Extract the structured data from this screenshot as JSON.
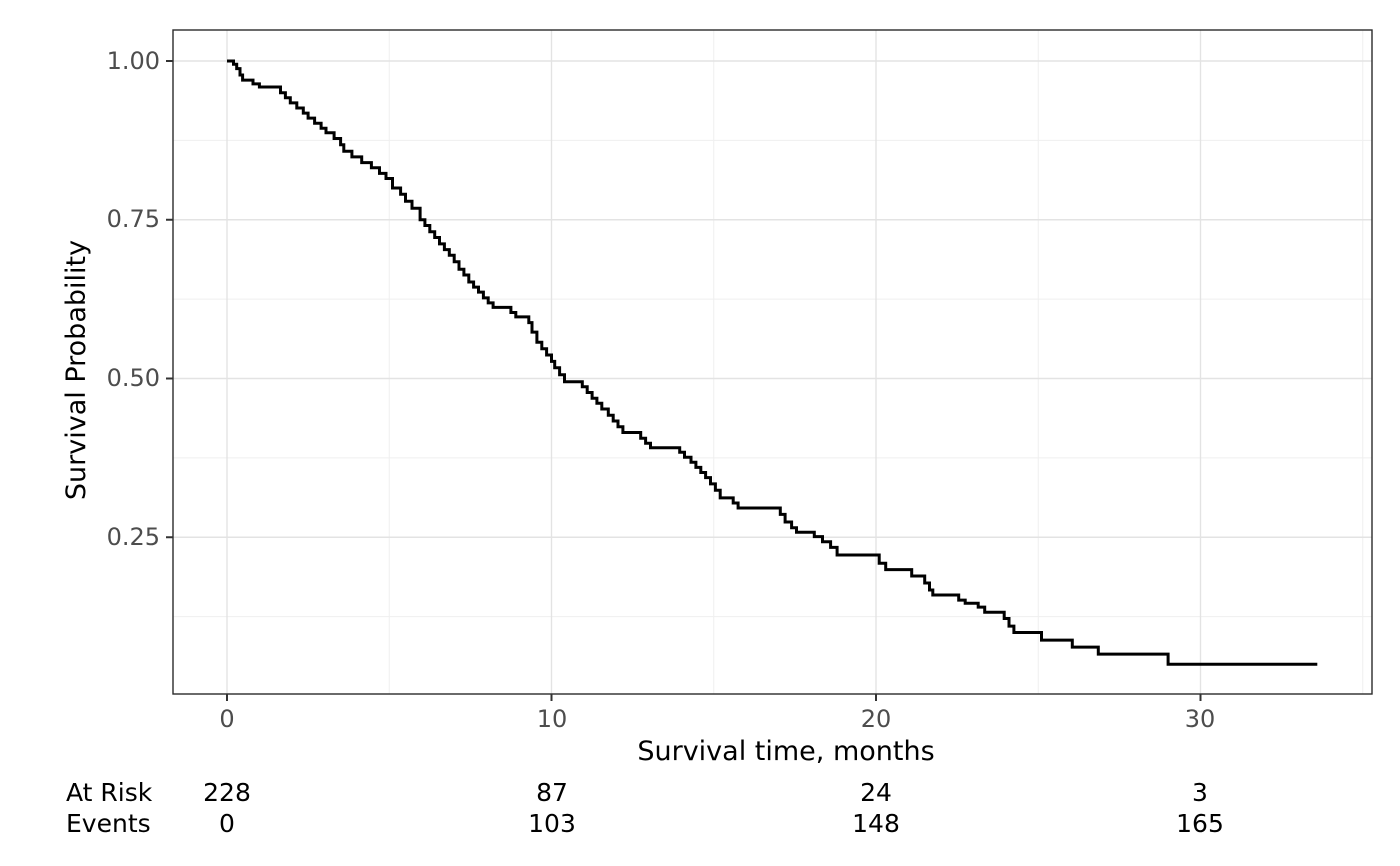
{
  "figure": {
    "colors": {
      "background": "#ffffff",
      "curve": "#000000",
      "grid_major": "#e3e3e3",
      "grid_minor": "#efefef",
      "panel_border": "#2b2b2b",
      "tick_mark": "#333333",
      "tick_label": "#4d4d4d",
      "title_text": "#000000"
    },
    "y_axis": {
      "title": "Survival Probability",
      "tick_labels": [
        "1.00",
        "0.75",
        "0.50",
        "0.25"
      ]
    },
    "x_axis": {
      "title": "Survival time, months",
      "tick_labels": [
        "0",
        "10",
        "20",
        "30"
      ]
    }
  },
  "risk_table": {
    "at_risk_label": "At Risk",
    "events_label": "Events",
    "times": [
      0,
      10,
      20,
      30
    ],
    "at_risk_values": [
      "228",
      "87",
      "24",
      "3"
    ],
    "events_values": [
      "0",
      "103",
      "148",
      "165"
    ]
  },
  "chart_data": {
    "type": "line",
    "subtype": "kaplan-meier-step-curve",
    "title": "",
    "xlabel": "Survival time, months",
    "ylabel": "Survival Probability",
    "xlim": [
      -1.7,
      35.3
    ],
    "ylim": [
      0.0,
      1.05
    ],
    "x_ticks": [
      0,
      10,
      20,
      30
    ],
    "x_minor_ticks": [
      5,
      15,
      25,
      35
    ],
    "y_ticks": [
      0.25,
      0.5,
      0.75,
      1.0
    ],
    "y_minor_ticks": [
      0.125,
      0.375,
      0.625,
      0.875
    ],
    "grid": "major and minor, light grey on white",
    "legend": "none",
    "n_subjects": 228,
    "total_events": 165,
    "end_time": 33.6,
    "at_risk": {
      "times": [
        0,
        10,
        20,
        30
      ],
      "n_risk": [
        228,
        87,
        24,
        3
      ],
      "cum_events": [
        0,
        103,
        148,
        165
      ]
    },
    "steps": [
      [
        0,
        1.0
      ],
      [
        0.2,
        0.995
      ],
      [
        0.3,
        0.988
      ],
      [
        0.4,
        0.978
      ],
      [
        0.48,
        0.97
      ],
      [
        0.8,
        0.964
      ],
      [
        1.0,
        0.959
      ],
      [
        1.65,
        0.95
      ],
      [
        1.8,
        0.942
      ],
      [
        1.95,
        0.934
      ],
      [
        2.15,
        0.926
      ],
      [
        2.35,
        0.918
      ],
      [
        2.5,
        0.91
      ],
      [
        2.7,
        0.902
      ],
      [
        2.9,
        0.894
      ],
      [
        3.05,
        0.887
      ],
      [
        3.3,
        0.878
      ],
      [
        3.5,
        0.868
      ],
      [
        3.6,
        0.858
      ],
      [
        3.85,
        0.849
      ],
      [
        4.15,
        0.84
      ],
      [
        4.45,
        0.832
      ],
      [
        4.7,
        0.823
      ],
      [
        4.9,
        0.815
      ],
      [
        5.1,
        0.8
      ],
      [
        5.35,
        0.79
      ],
      [
        5.5,
        0.779
      ],
      [
        5.7,
        0.768
      ],
      [
        5.95,
        0.75
      ],
      [
        6.1,
        0.741
      ],
      [
        6.25,
        0.731
      ],
      [
        6.4,
        0.722
      ],
      [
        6.55,
        0.712
      ],
      [
        6.7,
        0.703
      ],
      [
        6.85,
        0.694
      ],
      [
        7.0,
        0.684
      ],
      [
        7.15,
        0.672
      ],
      [
        7.3,
        0.663
      ],
      [
        7.45,
        0.652
      ],
      [
        7.6,
        0.644
      ],
      [
        7.75,
        0.636
      ],
      [
        7.9,
        0.627
      ],
      [
        8.05,
        0.619
      ],
      [
        8.2,
        0.612
      ],
      [
        8.75,
        0.604
      ],
      [
        8.9,
        0.597
      ],
      [
        9.3,
        0.588
      ],
      [
        9.4,
        0.573
      ],
      [
        9.55,
        0.557
      ],
      [
        9.7,
        0.547
      ],
      [
        9.85,
        0.537
      ],
      [
        10.0,
        0.527
      ],
      [
        10.1,
        0.517
      ],
      [
        10.25,
        0.506
      ],
      [
        10.4,
        0.495
      ],
      [
        10.95,
        0.487
      ],
      [
        11.1,
        0.478
      ],
      [
        11.25,
        0.469
      ],
      [
        11.4,
        0.461
      ],
      [
        11.55,
        0.452
      ],
      [
        11.75,
        0.442
      ],
      [
        11.9,
        0.433
      ],
      [
        12.05,
        0.424
      ],
      [
        12.2,
        0.415
      ],
      [
        12.75,
        0.406
      ],
      [
        12.9,
        0.398
      ],
      [
        13.05,
        0.391
      ],
      [
        13.95,
        0.384
      ],
      [
        14.1,
        0.376
      ],
      [
        14.3,
        0.368
      ],
      [
        14.45,
        0.36
      ],
      [
        14.6,
        0.352
      ],
      [
        14.75,
        0.344
      ],
      [
        14.9,
        0.334
      ],
      [
        15.05,
        0.324
      ],
      [
        15.2,
        0.312
      ],
      [
        15.6,
        0.304
      ],
      [
        15.75,
        0.296
      ],
      [
        17.05,
        0.286
      ],
      [
        17.2,
        0.274
      ],
      [
        17.4,
        0.265
      ],
      [
        17.55,
        0.258
      ],
      [
        18.1,
        0.251
      ],
      [
        18.35,
        0.243
      ],
      [
        18.6,
        0.234
      ],
      [
        18.8,
        0.222
      ],
      [
        20.1,
        0.209
      ],
      [
        20.3,
        0.199
      ],
      [
        21.1,
        0.189
      ],
      [
        21.5,
        0.178
      ],
      [
        21.65,
        0.167
      ],
      [
        21.75,
        0.159
      ],
      [
        22.55,
        0.151
      ],
      [
        22.75,
        0.146
      ],
      [
        23.15,
        0.14
      ],
      [
        23.35,
        0.132
      ],
      [
        23.95,
        0.122
      ],
      [
        24.1,
        0.11
      ],
      [
        24.25,
        0.1
      ],
      [
        25.1,
        0.088
      ],
      [
        26.05,
        0.077
      ],
      [
        26.85,
        0.066
      ],
      [
        29.0,
        0.05
      ]
    ]
  }
}
